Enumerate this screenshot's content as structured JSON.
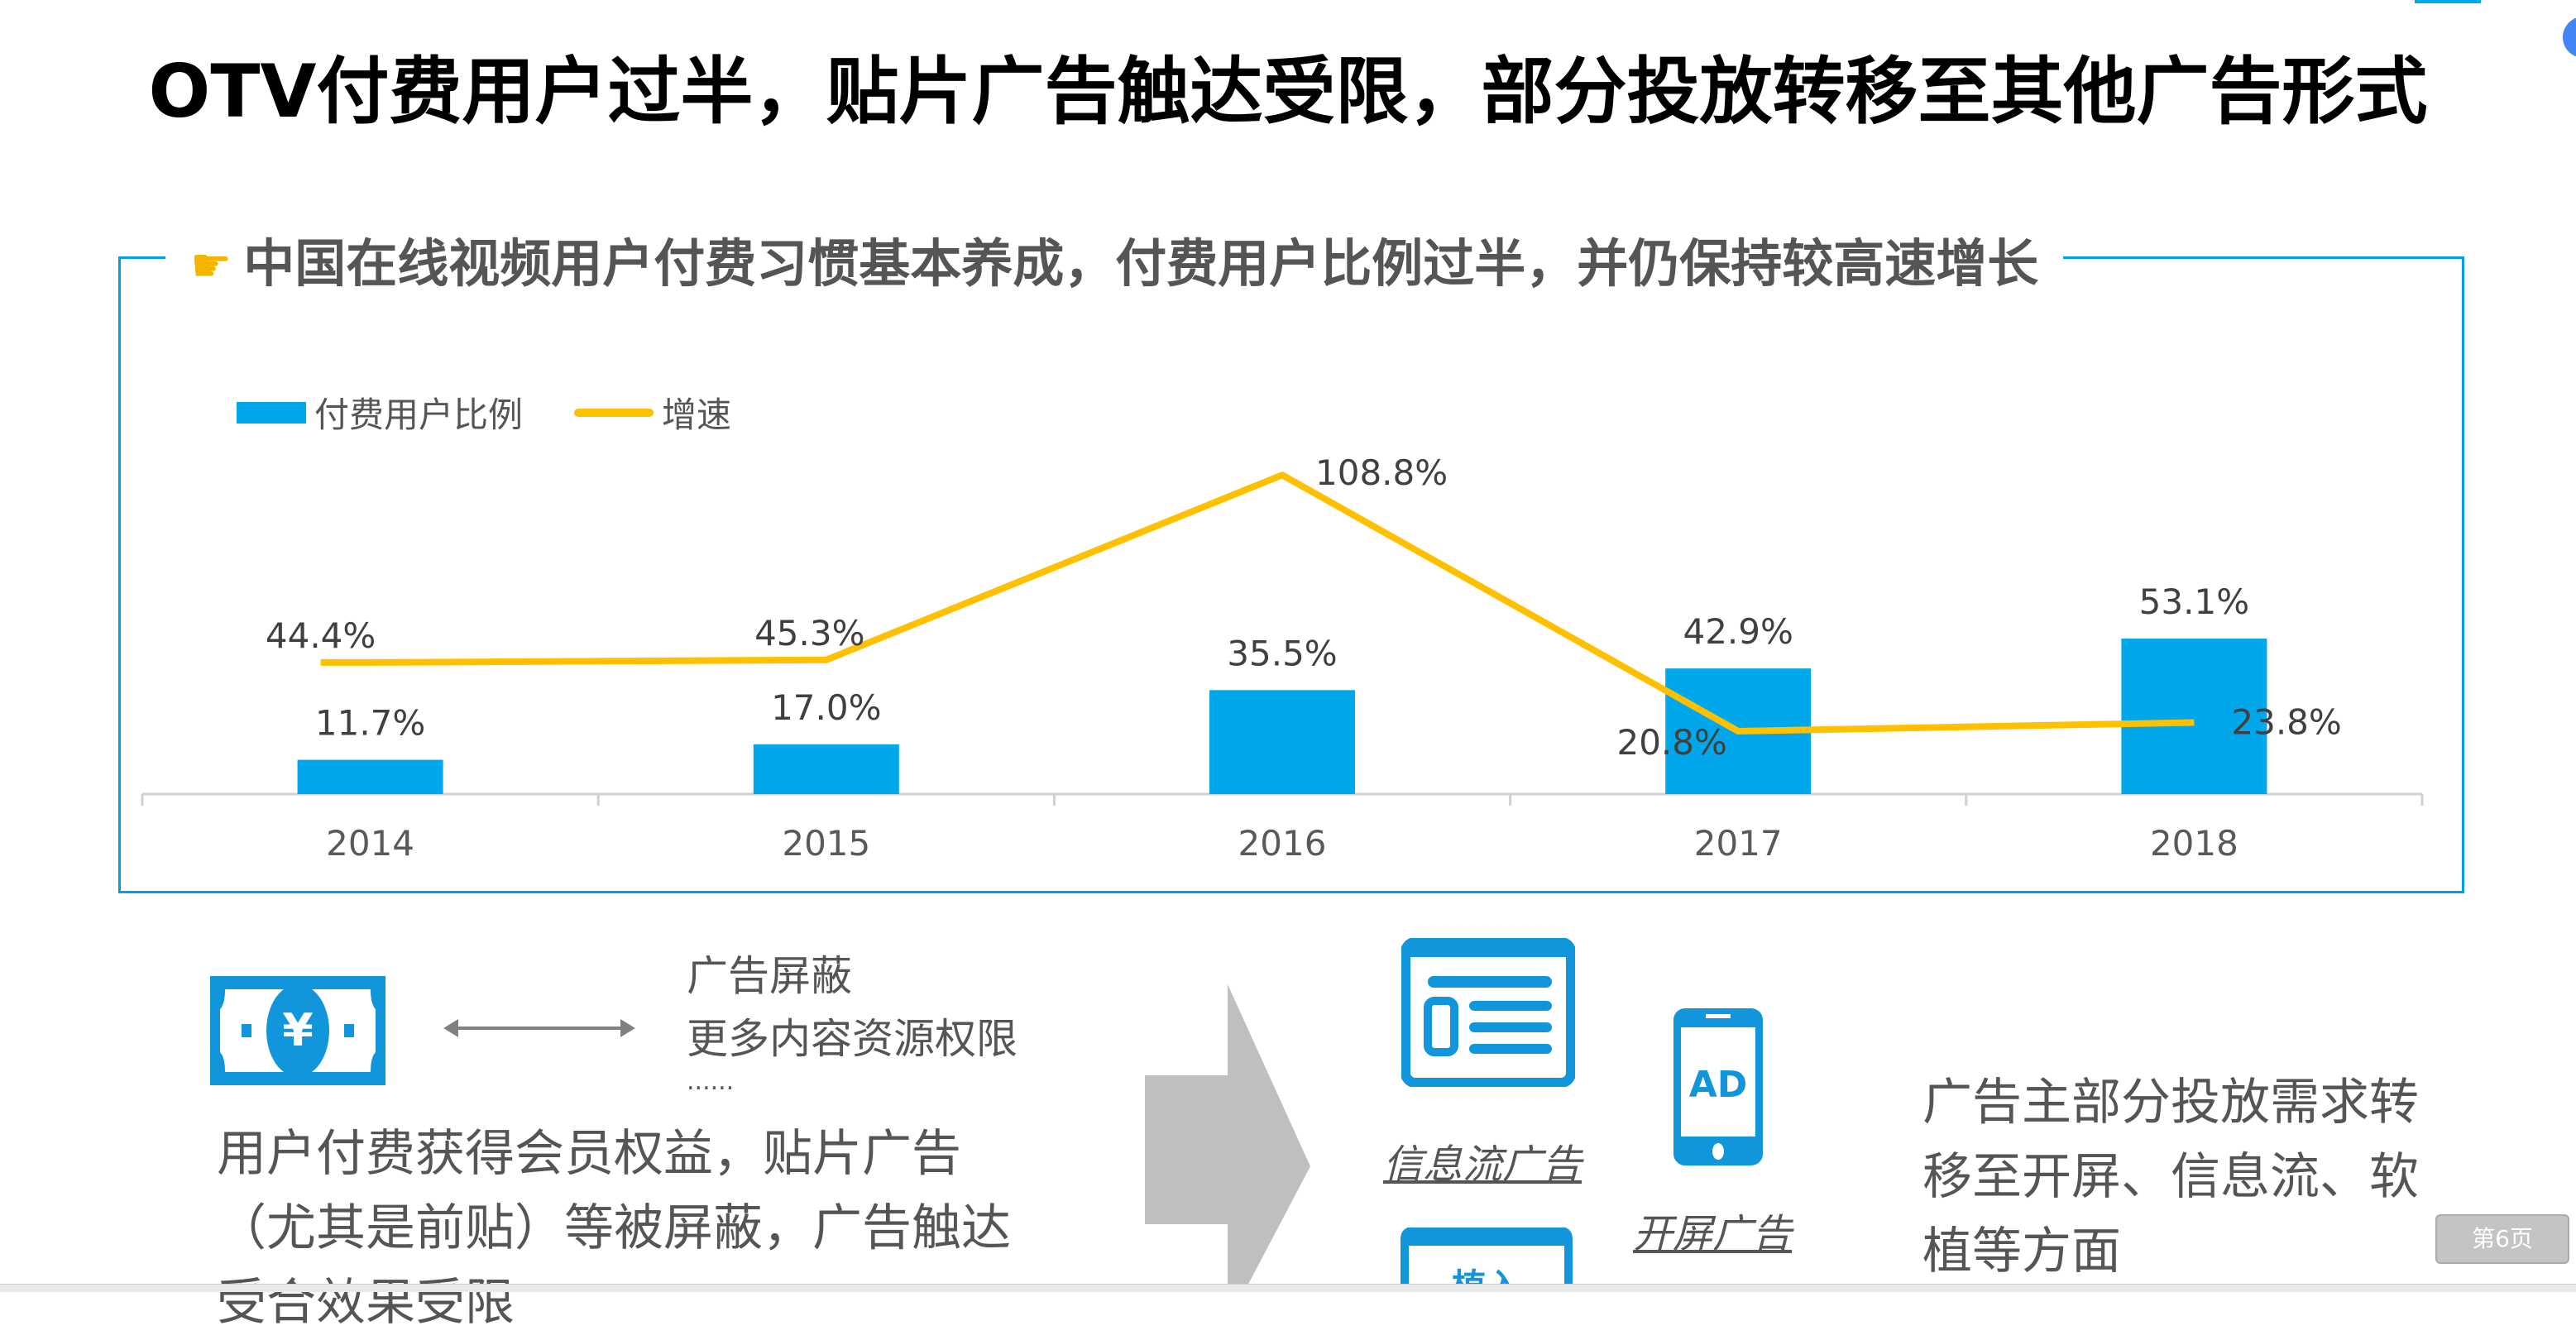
{
  "title": "OTV付费用户过半，贴片广告触达受限，部分投放转移至其他广告形式",
  "subtitle": "中国在线视频用户付费习惯基本养成，付费用户比例过半，并仍保持较高速增长",
  "subtitle_icon": "pointing-hand-icon",
  "chart_data": {
    "type": "bar",
    "categories": [
      "2014",
      "2015",
      "2016",
      "2017",
      "2018"
    ],
    "series": [
      {
        "name": "付费用户比例",
        "type": "bar",
        "values": [
          11.7,
          17.0,
          35.5,
          42.9,
          53.1
        ],
        "labels": [
          "11.7%",
          "17.0%",
          "35.5%",
          "42.9%",
          "53.1%"
        ],
        "color": "#00A7EA"
      },
      {
        "name": "增速",
        "type": "line",
        "values": [
          44.4,
          45.3,
          108.8,
          20.8,
          23.8
        ],
        "labels": [
          "44.4%",
          "45.3%",
          "108.8%",
          "20.8%",
          "23.8%"
        ],
        "color": "#FFC000"
      }
    ],
    "legend": "top-left",
    "grid": false
  },
  "left_panel": {
    "icon": "money-yen-icon",
    "arrow_icon": "double-arrow-icon",
    "benefits": [
      "广告屏蔽",
      "更多内容资源权限",
      "......"
    ],
    "paragraph": [
      "用户付费获得会员权益，贴片广告",
      "（尤其是前贴）等被屏蔽，广告触达",
      "受合效果受限"
    ]
  },
  "right_panel": {
    "feed_label": "信息流广告",
    "splash_label": "开屏广告",
    "splash_icon_text": "AD",
    "embed_icon_text": "植入",
    "paragraph": [
      "广告主部分投放需求转",
      "移至开屏、信息流、软",
      "植等方面"
    ]
  },
  "page_badge": "第6页",
  "colors": {
    "accent": "#00A0E9",
    "line": "#FFC000",
    "arrow": "#BFBFBF"
  }
}
